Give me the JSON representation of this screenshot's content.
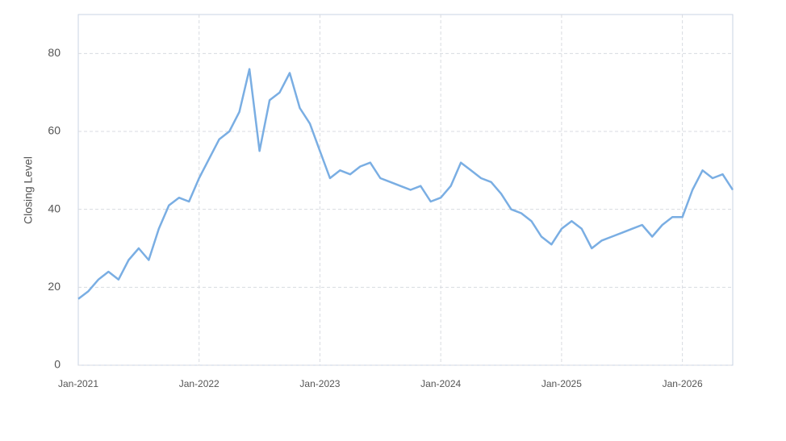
{
  "chart_data": {
    "type": "line",
    "y_label": "Closing Level",
    "x": [
      "2021-01",
      "2021-02",
      "2021-03",
      "2021-04",
      "2021-05",
      "2021-06",
      "2021-07",
      "2021-08",
      "2021-09",
      "2021-10",
      "2021-11",
      "2021-12",
      "2022-01",
      "2022-02",
      "2022-03",
      "2022-04",
      "2022-05",
      "2022-06",
      "2022-07",
      "2022-08",
      "2022-09",
      "2022-10",
      "2022-11",
      "2022-12",
      "2023-01",
      "2023-02",
      "2023-03",
      "2023-04",
      "2023-05",
      "2023-06",
      "2023-07",
      "2023-08",
      "2023-09",
      "2023-10",
      "2023-11",
      "2023-12",
      "2024-01",
      "2024-02",
      "2024-03",
      "2024-04",
      "2024-05",
      "2024-06",
      "2024-07",
      "2024-08",
      "2024-09",
      "2024-10",
      "2024-11",
      "2024-12",
      "2025-01",
      "2025-02",
      "2025-03",
      "2025-04",
      "2025-05",
      "2025-06",
      "2025-07",
      "2025-08",
      "2025-09",
      "2025-10",
      "2025-11",
      "2025-12",
      "2026-01",
      "2026-02",
      "2026-03",
      "2026-04",
      "2026-05",
      "2026-06"
    ],
    "series": [
      {
        "name": "Closing Level",
        "color": "#7aaee3",
        "values": [
          17,
          19,
          22,
          24,
          22,
          27,
          30,
          27,
          35,
          41,
          43,
          42,
          48,
          53,
          58,
          60,
          65,
          76,
          55,
          68,
          70,
          75,
          66,
          62,
          55,
          48,
          50,
          49,
          51,
          52,
          48,
          47,
          46,
          45,
          46,
          42,
          43,
          46,
          52,
          50,
          48,
          47,
          44,
          40,
          39,
          37,
          33,
          31,
          35,
          37,
          35,
          30,
          32,
          33,
          34,
          35,
          36,
          33,
          36,
          38,
          38,
          45,
          50,
          48,
          49,
          45
        ]
      }
    ],
    "xlim": [
      "2021-01",
      "2026-06"
    ],
    "xticks": [
      {
        "value": "2021-01",
        "label": "Jan-2021"
      },
      {
        "value": "2022-01",
        "label": "Jan-2022"
      },
      {
        "value": "2023-01",
        "label": "Jan-2023"
      },
      {
        "value": "2024-01",
        "label": "Jan-2024"
      },
      {
        "value": "2025-01",
        "label": "Jan-2025"
      },
      {
        "value": "2026-01",
        "label": "Jan-2026"
      }
    ],
    "ylim": [
      0,
      90
    ],
    "yticks": [
      0,
      20,
      40,
      60,
      80
    ],
    "grid": true
  }
}
